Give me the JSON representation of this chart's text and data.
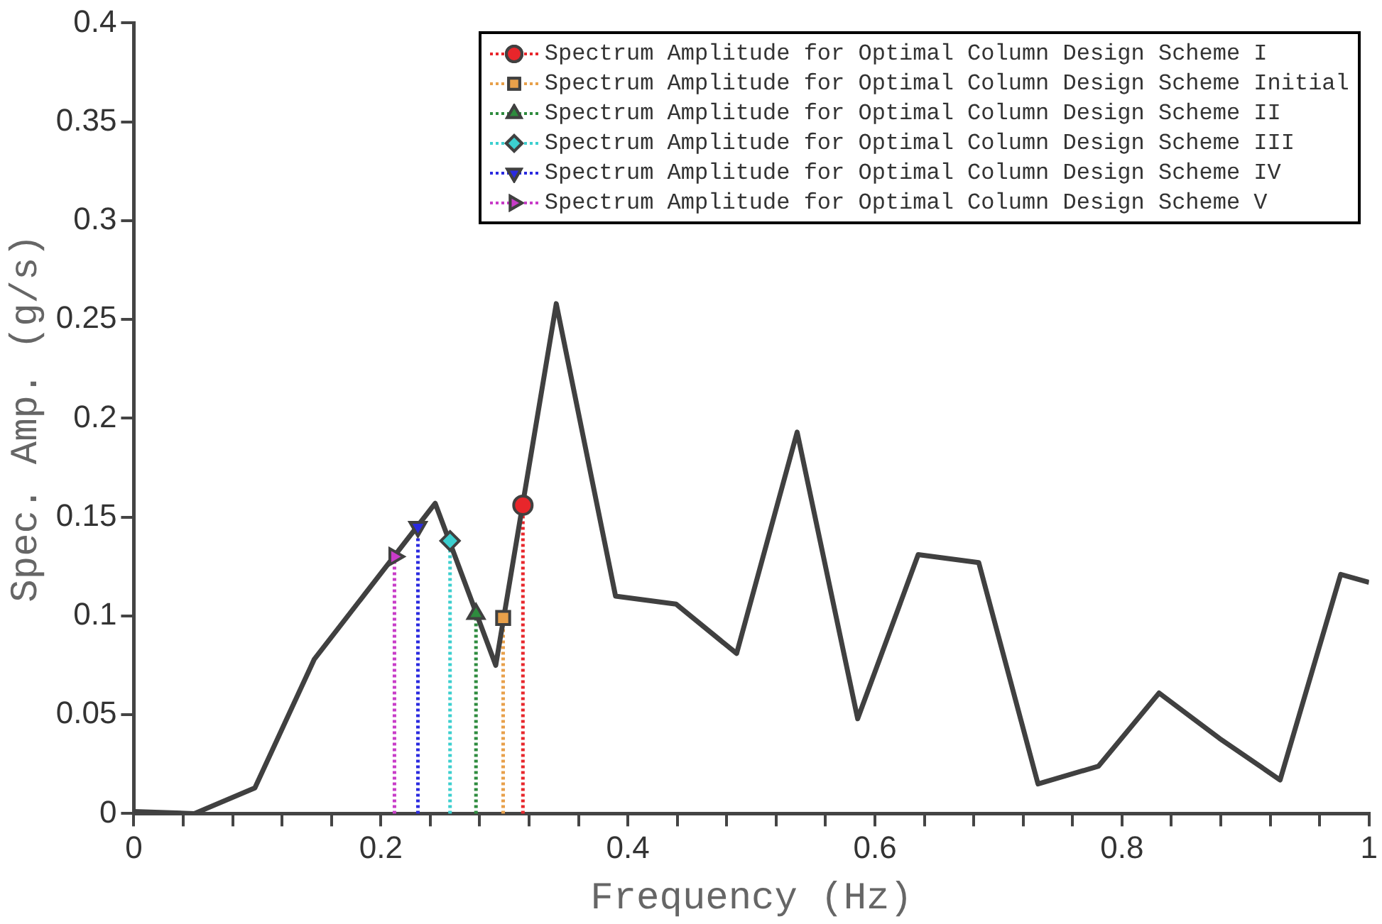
{
  "chart_data": {
    "type": "line",
    "xlabel": "Frequency (Hz)",
    "ylabel": "Spec. Amp. (g/s)",
    "xlim": [
      0,
      1
    ],
    "ylim": [
      0,
      0.4
    ],
    "xticks": [
      0,
      {
        "value": 0.04,
        "label": null
      },
      {
        "value": 0.08,
        "label": null
      },
      {
        "value": 0.12,
        "label": null
      },
      {
        "value": 0.16,
        "label": null
      },
      0.2,
      {
        "value": 0.24,
        "label": null
      },
      {
        "value": 0.28,
        "label": null
      },
      {
        "value": 0.32,
        "label": null
      },
      {
        "value": 0.36,
        "label": null
      },
      0.4,
      {
        "value": 0.44,
        "label": null
      },
      {
        "value": 0.48,
        "label": null
      },
      {
        "value": 0.52,
        "label": null
      },
      {
        "value": 0.56,
        "label": null
      },
      0.6,
      {
        "value": 0.64,
        "label": null
      },
      {
        "value": 0.68,
        "label": null
      },
      {
        "value": 0.72,
        "label": null
      },
      {
        "value": 0.76,
        "label": null
      },
      0.8,
      {
        "value": 0.84,
        "label": null
      },
      {
        "value": 0.88,
        "label": null
      },
      {
        "value": 0.92,
        "label": null
      },
      {
        "value": 0.96,
        "label": null
      },
      1
    ],
    "yticks": [
      0,
      0.05,
      0.1,
      0.15,
      0.2,
      0.25,
      0.3,
      0.35,
      0.4
    ],
    "grid": false,
    "legend": "top right",
    "series": [
      {
        "type": "line",
        "color": "#404040",
        "marker": "none",
        "x": [
          0,
          0.049,
          0.098,
          0.146,
          0.244,
          0.293,
          0.342,
          0.39,
          0.439,
          0.488,
          0.537,
          0.586,
          0.635,
          0.684,
          0.732,
          0.781,
          0.83,
          0.879,
          0.928,
          0.977,
          1
        ],
        "values": [
          0.001,
          0,
          0.013,
          0.078,
          0.157,
          0.075,
          0.258,
          0.11,
          0.106,
          0.081,
          0.193,
          0.048,
          0.131,
          0.127,
          0.015,
          0.024,
          0.061,
          0.038,
          0.017,
          0.121,
          0.117
        ]
      },
      {
        "type": "lollipop",
        "name": "Spectrum Amplitude for Optimal Column Design Scheme I",
        "color": "#e8262b",
        "marker": "circle",
        "line_style": "dotted",
        "x": [
          0.315
        ],
        "values": [
          0.156
        ]
      },
      {
        "type": "lollipop",
        "name": "Spectrum Amplitude for Optimal Column Design Scheme Initial",
        "color": "#e8a04a",
        "marker": "square",
        "line_style": "dotted",
        "x": [
          0.299
        ],
        "values": [
          0.099
        ]
      },
      {
        "type": "lollipop",
        "name": "Spectrum Amplitude for Optimal Column Design Scheme II",
        "color": "#2e8b3e",
        "marker": "triangle",
        "line_style": "dotted",
        "x": [
          0.277
        ],
        "values": [
          0.101
        ]
      },
      {
        "type": "lollipop",
        "name": "Spectrum Amplitude for Optimal Column Design Scheme III",
        "color": "#3ccfcf",
        "marker": "diamond",
        "line_style": "dotted",
        "x": [
          0.256
        ],
        "values": [
          0.138
        ]
      },
      {
        "type": "lollipop",
        "name": "Spectrum Amplitude for Optimal Column Design Scheme IV",
        "color": "#2a2ae0",
        "marker": "triangle-down",
        "line_style": "dotted",
        "x": [
          0.23
        ],
        "values": [
          0.145
        ]
      },
      {
        "type": "lollipop",
        "name": "Spectrum Amplitude for Optimal Column Design Scheme V",
        "color": "#c83cc8",
        "marker": "triangle-right",
        "line_style": "dotted",
        "x": [
          0.211
        ],
        "values": [
          0.13
        ]
      }
    ]
  }
}
